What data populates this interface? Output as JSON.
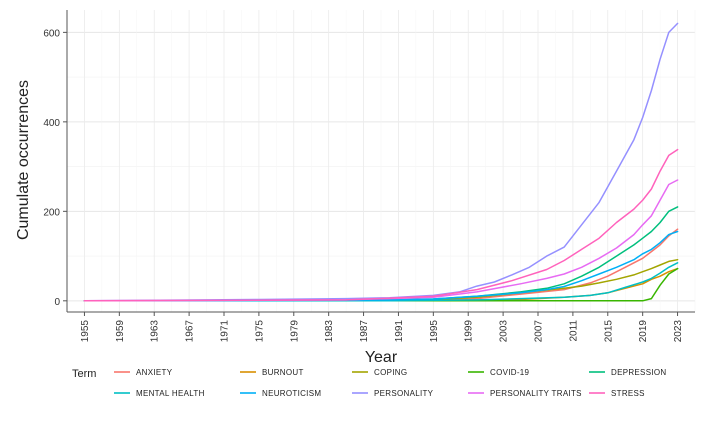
{
  "chart_data": {
    "type": "line",
    "title": "",
    "xlabel": "Year",
    "ylabel": "Cumulate occurrences",
    "xlim": [
      1953,
      2025
    ],
    "ylim": [
      -25,
      650
    ],
    "x_ticks": [
      1955,
      1959,
      1963,
      1967,
      1971,
      1975,
      1979,
      1983,
      1987,
      1991,
      1995,
      1999,
      2003,
      2007,
      2011,
      2015,
      2019,
      2023
    ],
    "y_ticks": [
      0,
      200,
      400,
      600
    ],
    "grid": true,
    "legend": {
      "title": "Term",
      "placement": "bottom"
    },
    "series": [
      {
        "name": "ANXIETY",
        "color": "#F8766D",
        "x": [
          1955,
          1980,
          1995,
          2000,
          2005,
          2010,
          2013,
          2015,
          2017,
          2019,
          2020,
          2021,
          2022,
          2023
        ],
        "y": [
          0,
          0,
          1,
          5,
          15,
          25,
          40,
          55,
          75,
          95,
          110,
          125,
          145,
          160
        ]
      },
      {
        "name": "BURNOUT",
        "color": "#D89000",
        "x": [
          1955,
          1985,
          2000,
          2005,
          2010,
          2013,
          2015,
          2017,
          2019,
          2020,
          2021,
          2022,
          2023
        ],
        "y": [
          0,
          0,
          1,
          3,
          8,
          12,
          18,
          28,
          38,
          48,
          55,
          65,
          72
        ]
      },
      {
        "name": "COPING",
        "color": "#A3A500",
        "x": [
          1955,
          1985,
          1995,
          2000,
          2005,
          2010,
          2012,
          2014,
          2016,
          2018,
          2019,
          2020,
          2021,
          2022,
          2023
        ],
        "y": [
          0,
          0,
          3,
          8,
          18,
          28,
          33,
          40,
          48,
          58,
          65,
          72,
          80,
          88,
          92
        ]
      },
      {
        "name": "COVID-19",
        "color": "#39B600",
        "x": [
          1955,
          2019,
          2020,
          2021,
          2022,
          2023
        ],
        "y": [
          0,
          0,
          5,
          35,
          60,
          72
        ]
      },
      {
        "name": "DEPRESSION",
        "color": "#00BF7D",
        "x": [
          1955,
          1980,
          1990,
          1995,
          2000,
          2005,
          2008,
          2010,
          2012,
          2014,
          2016,
          2018,
          2019,
          2020,
          2021,
          2022,
          2023
        ],
        "y": [
          0,
          0,
          2,
          4,
          10,
          20,
          28,
          38,
          55,
          75,
          100,
          125,
          140,
          155,
          175,
          200,
          210
        ]
      },
      {
        "name": "MENTAL HEALTH",
        "color": "#00BFC4",
        "x": [
          1955,
          1990,
          2000,
          2005,
          2010,
          2013,
          2015,
          2017,
          2019,
          2020,
          2021,
          2022,
          2023
        ],
        "y": [
          0,
          0,
          2,
          5,
          8,
          12,
          18,
          30,
          42,
          50,
          62,
          75,
          85
        ]
      },
      {
        "name": "NEUROTICISM",
        "color": "#00B0F6",
        "x": [
          1955,
          1980,
          1990,
          1995,
          2000,
          2005,
          2008,
          2010,
          2012,
          2014,
          2016,
          2018,
          2019,
          2020,
          2021,
          2022,
          2023
        ],
        "y": [
          0,
          1,
          2,
          4,
          10,
          18,
          25,
          32,
          45,
          60,
          75,
          92,
          105,
          115,
          130,
          148,
          155
        ]
      },
      {
        "name": "PERSONALITY",
        "color": "#9590FF",
        "x": [
          1955,
          1975,
          1985,
          1990,
          1995,
          1998,
          2000,
          2002,
          2004,
          2006,
          2008,
          2010,
          2012,
          2014,
          2016,
          2018,
          2019,
          2020,
          2021,
          2022,
          2023
        ],
        "y": [
          0,
          3,
          5,
          7,
          12,
          20,
          33,
          42,
          58,
          75,
          100,
          120,
          170,
          220,
          290,
          360,
          410,
          470,
          540,
          600,
          620
        ]
      },
      {
        "name": "PERSONALITY TRAITS",
        "color": "#E76BF3",
        "x": [
          1955,
          1985,
          1995,
          2000,
          2005,
          2008,
          2010,
          2012,
          2014,
          2016,
          2018,
          2019,
          2020,
          2021,
          2022,
          2023
        ],
        "y": [
          0,
          2,
          8,
          20,
          38,
          50,
          60,
          75,
          95,
          118,
          148,
          170,
          190,
          225,
          260,
          270
        ]
      },
      {
        "name": "STRESS",
        "color": "#FF62BC",
        "x": [
          1955,
          1985,
          1995,
          2000,
          2004,
          2008,
          2010,
          2012,
          2014,
          2016,
          2018,
          2019,
          2020,
          2021,
          2022,
          2023
        ],
        "y": [
          0,
          2,
          10,
          25,
          45,
          70,
          90,
          115,
          140,
          175,
          205,
          225,
          250,
          290,
          325,
          338
        ]
      }
    ]
  }
}
